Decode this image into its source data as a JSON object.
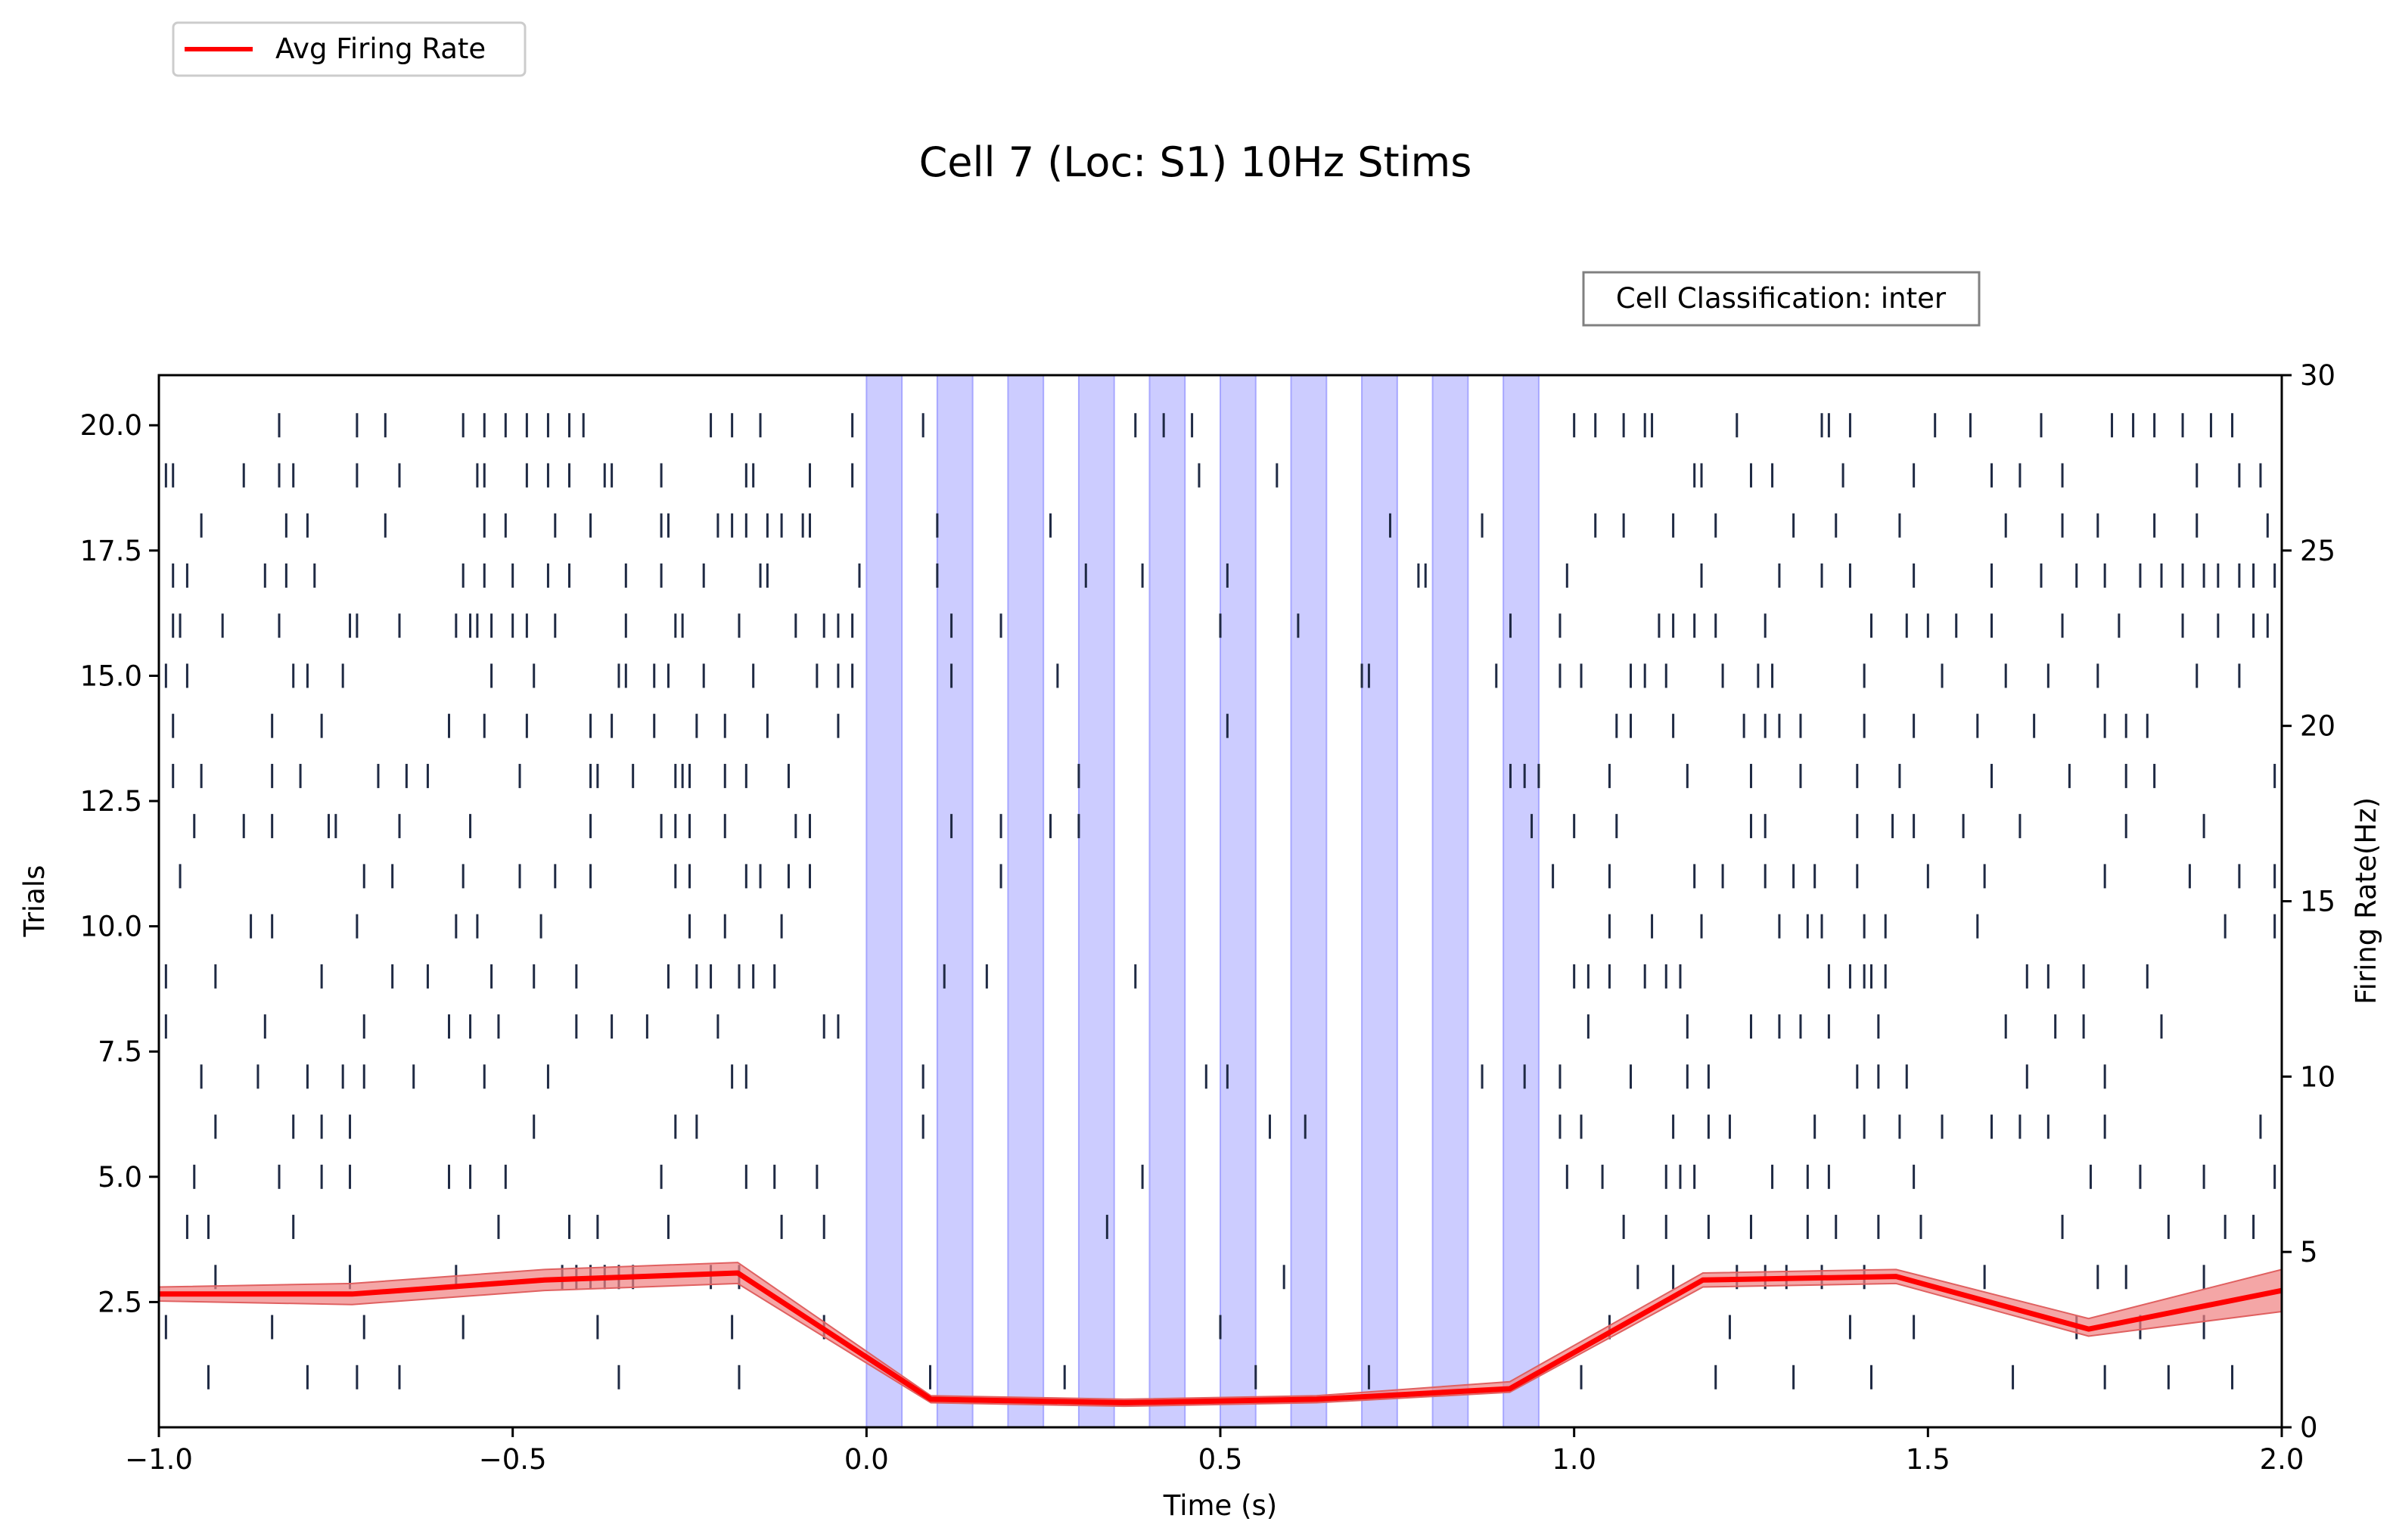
{
  "chart_data": {
    "type": "raster-line",
    "title": "Cell 7 (Loc: S1) 10Hz Stims",
    "xlabel": "Time (s)",
    "ylabel_left": "Trials",
    "ylabel_right": "Firing Rate(Hz)",
    "xlim": [
      -1.0,
      2.0
    ],
    "ylim_left": [
      0,
      21
    ],
    "ylim_right": [
      0,
      30
    ],
    "x_ticks": [
      "−1.0",
      "−0.5",
      "0.0",
      "0.5",
      "1.0",
      "1.5",
      "2.0"
    ],
    "left_y_ticks": [
      "2.5",
      "5.0",
      "7.5",
      "10.0",
      "12.5",
      "15.0",
      "17.5",
      "20.0"
    ],
    "right_y_ticks": [
      "0",
      "5",
      "10",
      "15",
      "20",
      "25",
      "30"
    ],
    "grid": false,
    "legend": {
      "placement": "top-left, above plot",
      "entries": [
        "Avg Firing Rate"
      ]
    },
    "annotation": "Cell Classification: inter",
    "colors": {
      "rate_line": "#ff0000",
      "rate_band": "#f08080",
      "stim": "#9999ff",
      "spike": "#1f2a44"
    },
    "stim_intervals": [
      [
        0.0,
        0.05
      ],
      [
        0.1,
        0.15
      ],
      [
        0.2,
        0.25
      ],
      [
        0.3,
        0.35
      ],
      [
        0.4,
        0.45
      ],
      [
        0.5,
        0.55
      ],
      [
        0.6,
        0.65
      ],
      [
        0.7,
        0.75
      ],
      [
        0.8,
        0.85
      ],
      [
        0.9,
        0.95
      ]
    ],
    "series": [
      {
        "name": "Avg Firing Rate",
        "x": [
          -1.0,
          -0.727,
          -0.455,
          -0.182,
          0.091,
          0.364,
          0.636,
          0.909,
          1.182,
          1.455,
          1.727,
          2.0
        ],
        "y": [
          3.8,
          3.8,
          4.2,
          4.4,
          0.8,
          0.7,
          0.8,
          1.1,
          4.2,
          4.3,
          2.8,
          3.9
        ],
        "y_lower": [
          3.6,
          3.5,
          3.9,
          4.1,
          0.7,
          0.6,
          0.7,
          1.0,
          4.0,
          4.1,
          2.6,
          3.3
        ],
        "y_upper": [
          4.0,
          4.1,
          4.5,
          4.7,
          0.9,
          0.8,
          0.9,
          1.3,
          4.4,
          4.5,
          3.1,
          4.5
        ]
      }
    ],
    "spikes": [
      {
        "trial": 1,
        "times": [
          -0.93,
          -0.79,
          -0.72,
          -0.66,
          -0.35,
          -0.18,
          0.09,
          0.28,
          0.55,
          0.71,
          1.01,
          1.2,
          1.31,
          1.42,
          1.62,
          1.75,
          1.84,
          1.93
        ]
      },
      {
        "trial": 2,
        "times": [
          -0.99,
          -0.84,
          -0.71,
          -0.57,
          -0.38,
          -0.19,
          -0.06,
          0.5,
          1.05,
          1.22,
          1.39,
          1.48,
          1.71,
          1.8,
          1.89
        ]
      },
      {
        "trial": 3,
        "times": [
          -0.92,
          -0.73,
          -0.58,
          -0.43,
          -0.41,
          -0.39,
          -0.37,
          -0.35,
          -0.33,
          -0.22,
          -0.18,
          0.59,
          1.09,
          1.14,
          1.23,
          1.27,
          1.3,
          1.35,
          1.41,
          1.58,
          1.74,
          1.78,
          1.89
        ]
      },
      {
        "trial": 4,
        "times": [
          -0.96,
          -0.93,
          -0.81,
          -0.52,
          -0.42,
          -0.38,
          -0.28,
          -0.12,
          -0.06,
          0.34,
          1.07,
          1.13,
          1.19,
          1.25,
          1.33,
          1.37,
          1.43,
          1.49,
          1.69,
          1.84,
          1.92,
          1.96
        ]
      },
      {
        "trial": 5,
        "times": [
          -0.95,
          -0.83,
          -0.77,
          -0.73,
          -0.59,
          -0.56,
          -0.51,
          -0.29,
          -0.17,
          -0.13,
          -0.07,
          0.39,
          0.99,
          1.04,
          1.13,
          1.15,
          1.17,
          1.28,
          1.33,
          1.36,
          1.48,
          1.73,
          1.8,
          1.89,
          1.99
        ]
      },
      {
        "trial": 6,
        "times": [
          -0.92,
          -0.81,
          -0.77,
          -0.73,
          -0.47,
          -0.27,
          -0.24,
          0.08,
          0.57,
          0.62,
          0.98,
          1.01,
          1.14,
          1.19,
          1.22,
          1.34,
          1.41,
          1.46,
          1.52,
          1.59,
          1.63,
          1.67,
          1.75,
          1.97
        ]
      },
      {
        "trial": 7,
        "times": [
          -0.94,
          -0.86,
          -0.79,
          -0.74,
          -0.71,
          -0.64,
          -0.54,
          -0.45,
          -0.19,
          -0.17,
          0.08,
          0.48,
          0.51,
          0.87,
          0.93,
          0.98,
          1.08,
          1.16,
          1.19,
          1.4,
          1.43,
          1.47,
          1.64,
          1.75
        ]
      },
      {
        "trial": 8,
        "times": [
          -0.99,
          -0.85,
          -0.71,
          -0.59,
          -0.56,
          -0.52,
          -0.41,
          -0.36,
          -0.31,
          -0.21,
          -0.06,
          -0.04,
          1.02,
          1.16,
          1.25,
          1.29,
          1.32,
          1.36,
          1.43,
          1.61,
          1.68,
          1.72,
          1.83
        ]
      },
      {
        "trial": 9,
        "times": [
          -0.99,
          -0.92,
          -0.77,
          -0.67,
          -0.62,
          -0.53,
          -0.47,
          -0.41,
          -0.28,
          -0.24,
          -0.22,
          -0.18,
          -0.16,
          -0.13,
          0.11,
          0.17,
          0.38,
          1.0,
          1.02,
          1.05,
          1.1,
          1.13,
          1.15,
          1.36,
          1.39,
          1.41,
          1.42,
          1.44,
          1.64,
          1.67,
          1.72,
          1.81
        ]
      },
      {
        "trial": 10,
        "times": [
          -0.87,
          -0.84,
          -0.72,
          -0.58,
          -0.55,
          -0.46,
          -0.25,
          -0.2,
          -0.12,
          1.05,
          1.11,
          1.18,
          1.29,
          1.33,
          1.35,
          1.41,
          1.44,
          1.57,
          1.92,
          1.99
        ]
      },
      {
        "trial": 11,
        "times": [
          -0.97,
          -0.71,
          -0.67,
          -0.57,
          -0.49,
          -0.44,
          -0.39,
          -0.27,
          -0.25,
          -0.17,
          -0.15,
          -0.11,
          -0.08,
          0.19,
          0.97,
          1.05,
          1.17,
          1.21,
          1.27,
          1.31,
          1.34,
          1.4,
          1.5,
          1.58,
          1.75,
          1.87,
          1.94,
          1.99
        ]
      },
      {
        "trial": 12,
        "times": [
          -1.0,
          -0.95,
          -0.88,
          -0.84,
          -0.76,
          -0.75,
          -0.66,
          -0.56,
          -0.39,
          -0.29,
          -0.27,
          -0.25,
          -0.2,
          -0.1,
          -0.08,
          0.12,
          0.19,
          0.26,
          0.3,
          0.94,
          1.0,
          1.06,
          1.25,
          1.27,
          1.4,
          1.45,
          1.48,
          1.55,
          1.63,
          1.78,
          1.89
        ]
      },
      {
        "trial": 13,
        "times": [
          -0.98,
          -0.94,
          -0.84,
          -0.8,
          -0.69,
          -0.65,
          -0.62,
          -0.49,
          -0.39,
          -0.38,
          -0.33,
          -0.27,
          -0.26,
          -0.25,
          -0.2,
          -0.17,
          -0.11,
          0.3,
          0.91,
          0.93,
          0.95,
          1.05,
          1.16,
          1.25,
          1.32,
          1.4,
          1.46,
          1.59,
          1.7,
          1.78,
          1.82,
          1.99
        ]
      },
      {
        "trial": 14,
        "times": [
          -0.98,
          -0.84,
          -0.77,
          -0.59,
          -0.54,
          -0.48,
          -0.39,
          -0.36,
          -0.3,
          -0.24,
          -0.2,
          -0.14,
          -0.04,
          0.51,
          1.06,
          1.08,
          1.14,
          1.24,
          1.27,
          1.29,
          1.32,
          1.41,
          1.48,
          1.57,
          1.65,
          1.75,
          1.78,
          1.81
        ]
      },
      {
        "trial": 15,
        "times": [
          -0.99,
          -0.96,
          -0.81,
          -0.79,
          -0.74,
          -0.53,
          -0.47,
          -0.35,
          -0.34,
          -0.3,
          -0.28,
          -0.23,
          -0.16,
          -0.07,
          -0.04,
          -0.02,
          0.12,
          0.27,
          0.7,
          0.71,
          0.89,
          0.98,
          1.01,
          1.08,
          1.1,
          1.13,
          1.21,
          1.26,
          1.28,
          1.41,
          1.52,
          1.61,
          1.67,
          1.74,
          1.88,
          1.94
        ]
      },
      {
        "trial": 16,
        "times": [
          -0.98,
          -0.97,
          -0.91,
          -0.83,
          -0.73,
          -0.72,
          -0.66,
          -0.58,
          -0.56,
          -0.55,
          -0.53,
          -0.5,
          -0.48,
          -0.44,
          -0.34,
          -0.27,
          -0.26,
          -0.18,
          -0.1,
          -0.06,
          -0.04,
          -0.02,
          0.12,
          0.19,
          0.5,
          0.61,
          0.91,
          0.98,
          1.12,
          1.14,
          1.17,
          1.2,
          1.27,
          1.42,
          1.47,
          1.5,
          1.54,
          1.59,
          1.69,
          1.77,
          1.86,
          1.91,
          1.96,
          1.98
        ]
      },
      {
        "trial": 17,
        "times": [
          -0.98,
          -0.96,
          -0.85,
          -0.82,
          -0.78,
          -0.57,
          -0.54,
          -0.5,
          -0.45,
          -0.42,
          -0.34,
          -0.29,
          -0.23,
          -0.15,
          -0.14,
          -0.01,
          0.1,
          0.31,
          0.39,
          0.51,
          0.78,
          0.79,
          0.99,
          1.18,
          1.29,
          1.35,
          1.39,
          1.48,
          1.59,
          1.66,
          1.71,
          1.75,
          1.8,
          1.83,
          1.86,
          1.89,
          1.91,
          1.94,
          1.96,
          1.99
        ]
      },
      {
        "trial": 18,
        "times": [
          -0.94,
          -0.82,
          -0.79,
          -0.68,
          -0.54,
          -0.51,
          -0.44,
          -0.39,
          -0.29,
          -0.28,
          -0.21,
          -0.19,
          -0.17,
          -0.14,
          -0.12,
          -0.09,
          -0.08,
          0.1,
          0.26,
          0.74,
          0.87,
          1.03,
          1.07,
          1.14,
          1.2,
          1.31,
          1.37,
          1.46,
          1.61,
          1.69,
          1.74,
          1.82,
          1.88,
          1.98
        ]
      },
      {
        "trial": 19,
        "times": [
          -0.99,
          -0.98,
          -0.88,
          -0.83,
          -0.81,
          -0.72,
          -0.66,
          -0.55,
          -0.54,
          -0.48,
          -0.45,
          -0.42,
          -0.37,
          -0.36,
          -0.29,
          -0.17,
          -0.16,
          -0.08,
          -0.02,
          0.47,
          0.58,
          1.17,
          1.18,
          1.25,
          1.28,
          1.38,
          1.48,
          1.59,
          1.63,
          1.69,
          1.88,
          1.94,
          1.97
        ]
      },
      {
        "trial": 20,
        "times": [
          -0.83,
          -0.72,
          -0.68,
          -0.57,
          -0.54,
          -0.51,
          -0.48,
          -0.45,
          -0.42,
          -0.4,
          -0.22,
          -0.19,
          -0.15,
          -0.02,
          0.08,
          0.38,
          0.42,
          0.46,
          1.0,
          1.03,
          1.07,
          1.1,
          1.11,
          1.23,
          1.35,
          1.36,
          1.39,
          1.51,
          1.56,
          1.66,
          1.76,
          1.79,
          1.82,
          1.86,
          1.9,
          1.93
        ]
      }
    ]
  }
}
